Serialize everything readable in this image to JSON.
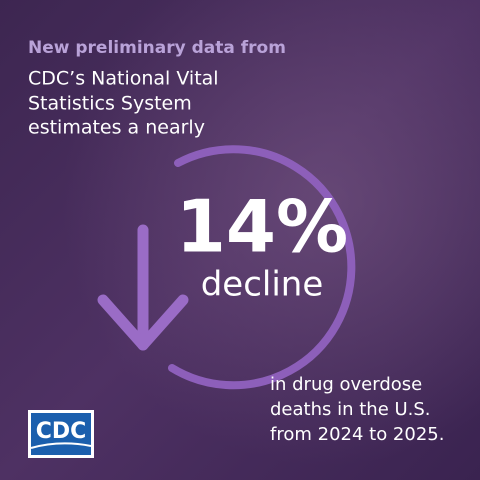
{
  "intro": {
    "kicker": "New preliminary data from",
    "lines": [
      "CDC’s National Vital",
      "Statistics System",
      "estimates a nearly"
    ]
  },
  "stat": {
    "value": "14%",
    "label": "decline"
  },
  "detail": {
    "lines": [
      "in drug overdose",
      "deaths in the U.S.",
      "from 2024 to 2025."
    ]
  },
  "logo": {
    "text": "CDC"
  }
}
